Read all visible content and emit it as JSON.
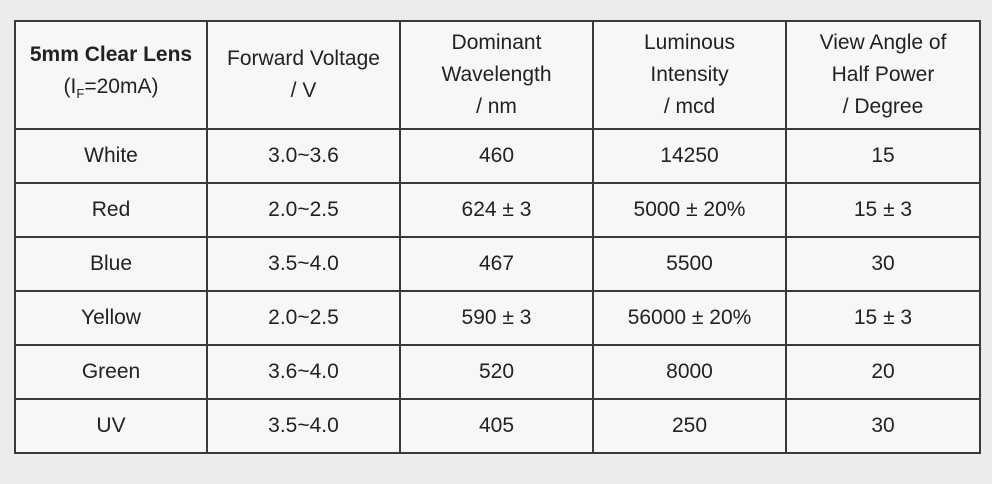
{
  "table": {
    "header": {
      "lens": {
        "title": "5mm Clear Lens",
        "condition_prefix": "(I",
        "condition_sub": "F",
        "condition_suffix": "=20mA)"
      },
      "forward_voltage": [
        "Forward Voltage",
        "/ V"
      ],
      "dominant_wavelength": [
        "Dominant",
        "Wavelength",
        "/ nm"
      ],
      "luminous_intensity": [
        "Luminous",
        "Intensity",
        "/ mcd"
      ],
      "view_angle": [
        "View Angle of",
        "Half Power",
        "/ Degree"
      ]
    },
    "rows": [
      [
        "White",
        "3.0~3.6",
        "460",
        "14250",
        "15"
      ],
      [
        "Red",
        "2.0~2.5",
        "624 ± 3",
        "5000 ± 20%",
        "15 ± 3"
      ],
      [
        "Blue",
        "3.5~4.0",
        "467",
        "5500",
        "30"
      ],
      [
        "Yellow",
        "2.0~2.5",
        "590 ± 3",
        "56000 ± 20%",
        "15 ± 3"
      ],
      [
        "Green",
        "3.6~4.0",
        "520",
        "8000",
        "20"
      ],
      [
        "UV",
        "3.5~4.0",
        "405",
        "250",
        "30"
      ]
    ]
  }
}
